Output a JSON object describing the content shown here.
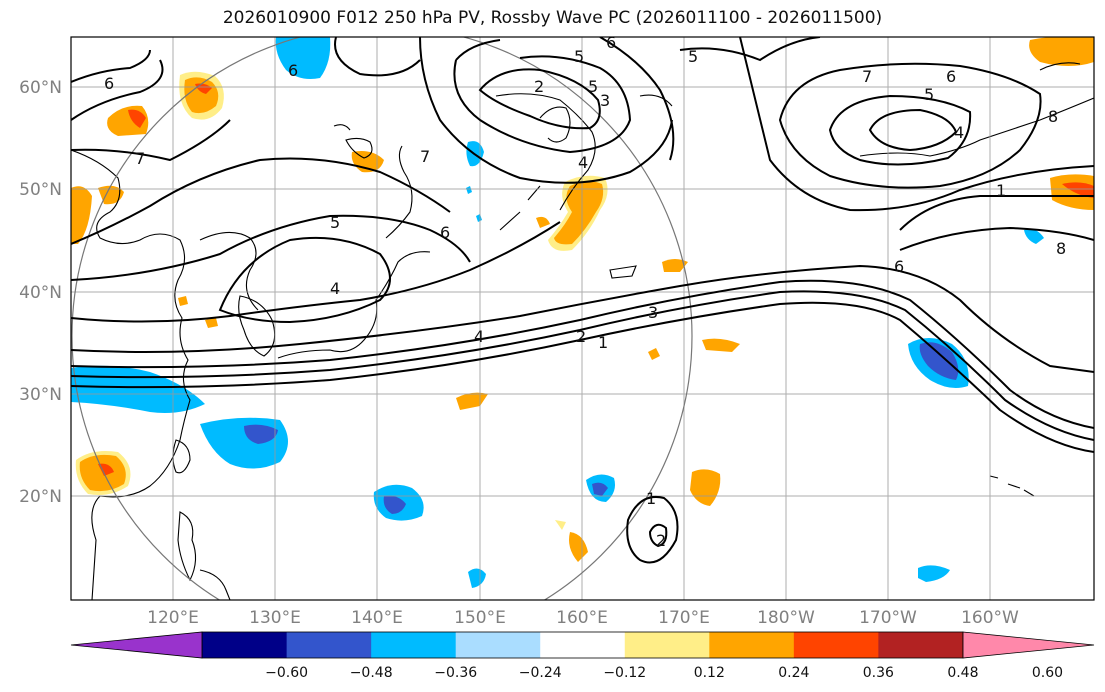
{
  "title": "2026010900 F012 250 hPa PV, Rossby Wave PC (2026011100 - 2026011500)",
  "map": {
    "lon_labels": [
      "120°E",
      "130°E",
      "140°E",
      "150°E",
      "160°E",
      "170°E",
      "180°W",
      "170°W",
      "160°W"
    ],
    "lat_labels": [
      "60°N",
      "50°N",
      "40°N",
      "30°N",
      "20°N"
    ],
    "contour_labels": [
      "6",
      "7",
      "5",
      "4",
      "6",
      "7",
      "5",
      "2",
      "5",
      "3",
      "6",
      "4",
      "5",
      "4",
      "3",
      "2",
      "1",
      "6",
      "7",
      "5",
      "6",
      "4",
      "1",
      "6",
      "8",
      "1",
      "2",
      "8"
    ]
  },
  "colorbar": {
    "ticks": [
      "−0.60",
      "−0.48",
      "−0.36",
      "−0.24",
      "−0.12",
      "0.12",
      "0.24",
      "0.36",
      "0.48",
      "0.60"
    ],
    "colors": [
      "#9933cc",
      "#000088",
      "#3355cc",
      "#00bbff",
      "#aaddff",
      "#ffffff",
      "#ffee88",
      "#ffa500",
      "#ff4400",
      "#b22222",
      "#ff88aa"
    ]
  }
}
